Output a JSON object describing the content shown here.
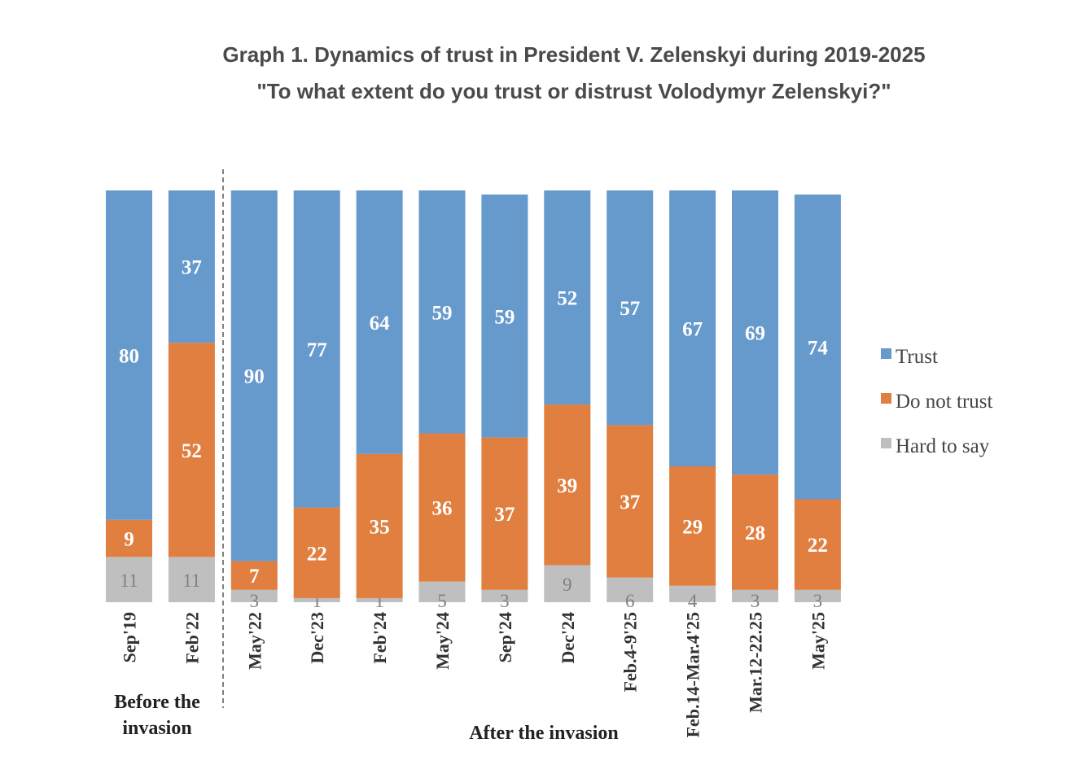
{
  "chart_data": {
    "type": "bar",
    "stacked": true,
    "title": "Graph 1. Dynamics of trust in President V. Zelenskyi during 2019-2025",
    "subtitle": "\"To what extent do you trust or distrust Volodymyr Zelenskyi?\"",
    "categories": [
      "Sep'19",
      "Feb'22",
      "May'22",
      "Dec'23",
      "Feb'24",
      "May'24",
      "Sep'24",
      "Dec'24",
      "Feb.4-9'25",
      "Feb.14-Mar.4'25",
      "Mar.12-22.25",
      "May'25"
    ],
    "series": [
      {
        "name": "Hard to say",
        "color": "#bfbfbf",
        "values": [
          11,
          11,
          3,
          1,
          1,
          5,
          3,
          9,
          6,
          4,
          3,
          3
        ]
      },
      {
        "name": "Do not trust",
        "color": "#e07f3f",
        "values": [
          9,
          52,
          7,
          22,
          35,
          36,
          37,
          39,
          37,
          29,
          28,
          22
        ]
      },
      {
        "name": "Trust",
        "color": "#6699cc",
        "values": [
          80,
          37,
          90,
          77,
          64,
          59,
          59,
          52,
          57,
          67,
          69,
          74
        ]
      }
    ],
    "ylim": [
      0,
      100
    ],
    "legend_position": "right",
    "groups": [
      {
        "label_line1": "Before the",
        "label_line2": "invasion"
      },
      {
        "label_line1": "After the invasion"
      }
    ]
  }
}
